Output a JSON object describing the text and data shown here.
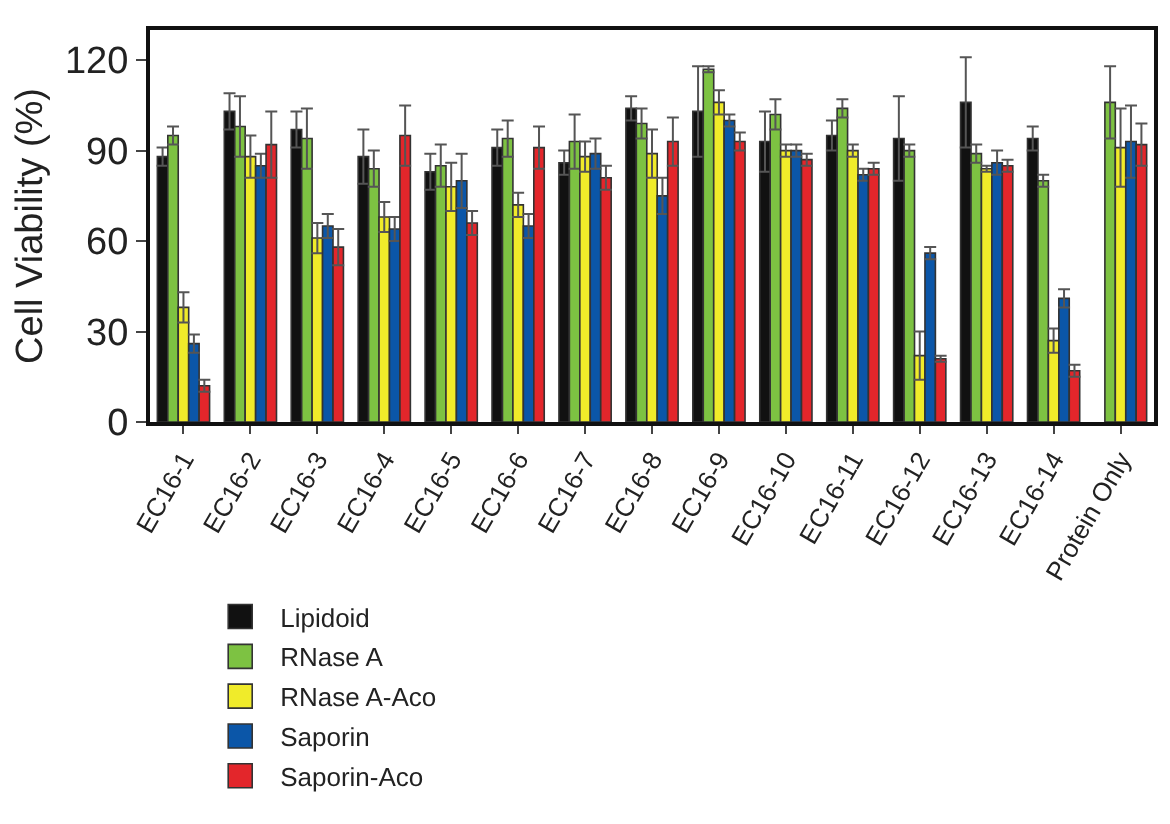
{
  "chart_data": {
    "type": "bar",
    "ylabel": "Cell Viability (%)",
    "categories": [
      "EC16-1",
      "EC16-2",
      "EC16-3",
      "EC16-4",
      "EC16-5",
      "EC16-6",
      "EC16-7",
      "EC16-8",
      "EC16-9",
      "EC16-10",
      "EC16-11",
      "EC16-12",
      "EC16-13",
      "EC16-14",
      "Protein Only"
    ],
    "series": [
      {
        "name": "Lipidoid",
        "color": "#111111",
        "values": [
          88,
          103,
          97,
          88,
          83,
          91,
          86,
          104,
          103,
          93,
          95,
          94,
          106,
          94,
          null
        ],
        "errors": [
          3,
          6,
          6,
          9,
          6,
          6,
          4,
          4,
          15,
          10,
          5,
          14,
          15,
          4,
          null
        ]
      },
      {
        "name": "RNase A",
        "color": "#7dc242",
        "values": [
          95,
          98,
          94,
          84,
          85,
          94,
          93,
          99,
          117,
          102,
          104,
          90,
          89,
          80,
          106
        ],
        "errors": [
          3,
          10,
          10,
          6,
          7,
          6,
          9,
          5,
          1,
          5,
          3,
          2,
          3,
          2,
          12
        ]
      },
      {
        "name": "RNase A-Aco",
        "color": "#f0eb2a",
        "values": [
          38,
          88,
          61,
          68,
          78,
          72,
          88,
          89,
          106,
          90,
          90,
          22,
          84,
          27,
          91
        ],
        "errors": [
          5,
          7,
          5,
          5,
          8,
          4,
          5,
          8,
          4,
          2,
          2,
          8,
          1,
          4,
          13
        ]
      },
      {
        "name": "Saporin",
        "color": "#0b56a8",
        "values": [
          26,
          85,
          65,
          64,
          80,
          65,
          89,
          75,
          100,
          90,
          82,
          56,
          86,
          41,
          93
        ],
        "errors": [
          3,
          4,
          4,
          4,
          9,
          4,
          5,
          6,
          2,
          2,
          2,
          2,
          4,
          3,
          12
        ]
      },
      {
        "name": "Saporin-Aco",
        "color": "#e3262b",
        "values": [
          12,
          92,
          58,
          95,
          66,
          91,
          81,
          93,
          93,
          87,
          84,
          21,
          85,
          17,
          92
        ],
        "errors": [
          2,
          11,
          6,
          10,
          4,
          7,
          4,
          8,
          3,
          2,
          2,
          1,
          2,
          2,
          7
        ]
      }
    ],
    "ylim": [
      0,
      130
    ],
    "yticks": [
      0,
      30,
      60,
      90,
      120
    ],
    "grid": false,
    "legend": "bottom"
  }
}
